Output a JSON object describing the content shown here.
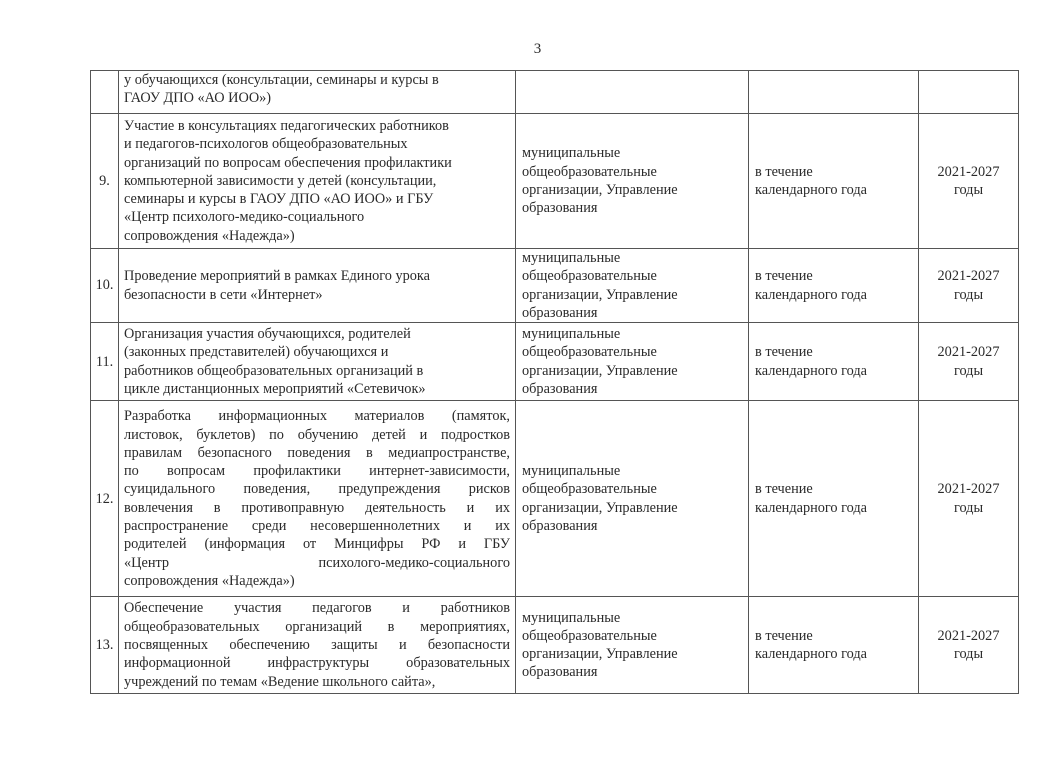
{
  "page_number": "3",
  "rows": [
    {
      "num": "",
      "desc": [
        "у обучающихся (консультации, семинары и курсы в",
        "ГАОУ ДПО «АО ИОО»)"
      ],
      "org": [],
      "time": [],
      "years": []
    },
    {
      "num": "9.",
      "desc": [
        "Участие в консультациях педагогических работников",
        "и педагогов-психологов общеобразовательных",
        "организаций по вопросам обеспечения профилактики",
        "компьютерной зависимости у детей (консультации,",
        "семинары и курсы в ГАОУ ДПО «АО ИОО» и ГБУ",
        "«Центр психолого-медико-социального",
        "сопровождения «Надежда»)"
      ],
      "org": [
        "муниципальные",
        "общеобразовательные",
        "организации, Управление",
        "образования"
      ],
      "time": [
        "в течение",
        "календарного года"
      ],
      "years": [
        "2021-2027",
        "годы"
      ]
    },
    {
      "num": "10.",
      "desc": [
        "Проведение мероприятий в рамках Единого урока",
        "безопасности в сети «Интернет»"
      ],
      "org": [
        "муниципальные",
        "общеобразовательные",
        "организации, Управление",
        "образования"
      ],
      "time": [
        "в течение",
        "календарного года"
      ],
      "years": [
        "2021-2027",
        "годы"
      ]
    },
    {
      "num": "11.",
      "desc": [
        "Организация участия обучающихся, родителей",
        "(законных представителей) обучающихся и",
        "работников общеобразовательных организаций в",
        "цикле дистанционных мероприятий «Сетевичок»"
      ],
      "org": [
        "муниципальные",
        "общеобразовательные",
        "организации, Управление",
        "образования"
      ],
      "time": [
        "в течение",
        "календарного года"
      ],
      "years": [
        "2021-2027",
        "годы"
      ]
    },
    {
      "num": "12.",
      "justify": true,
      "desc": [
        "Разработка информационных материалов (памяток,",
        "листовок, буклетов) по обучению детей и подростков",
        "правилам безопасного поведения в медиапространстве,",
        "по вопросам профилактики интернет-зависимости,",
        "суицидального поведения, предупреждения рисков",
        "вовлечения в противоправную деятельность и их",
        "распространение среди несовершеннолетних и их",
        "родителей (информация от Минцифры РФ и ГБУ",
        "«Центр психолого-медико-социального",
        "сопровождения «Надежда»)"
      ],
      "org": [
        "муниципальные",
        "общеобразовательные",
        "организации, Управление",
        "образования"
      ],
      "time": [
        "в течение",
        "календарного года"
      ],
      "years": [
        "2021-2027",
        "годы"
      ]
    },
    {
      "num": "13.",
      "justify": true,
      "desc": [
        "Обеспечение участия педагогов и работников",
        "общеобразовательных организаций в мероприятиях,",
        "посвященных обеспечению защиты и безопасности",
        "информационной инфраструктуры образовательных",
        "учреждений по темам «Ведение школьного сайта»,"
      ],
      "org": [
        "муниципальные",
        "общеобразовательные",
        "организации, Управление",
        "образования"
      ],
      "time": [
        "в течение",
        "календарного года"
      ],
      "years": [
        "2021-2027",
        "годы"
      ]
    }
  ]
}
